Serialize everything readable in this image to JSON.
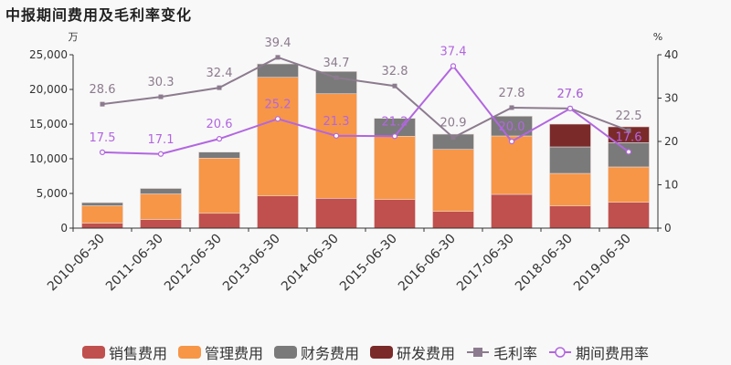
{
  "title": "中报期间费用及毛利率变化",
  "chart_data": {
    "type": "bar",
    "title": "中报期间费用及毛利率变化",
    "categories": [
      "2010-06-30",
      "2011-06-30",
      "2012-06-30",
      "2013-06-30",
      "2014-06-30",
      "2015-06-30",
      "2016-06-30",
      "2017-06-30",
      "2018-06-30",
      "2019-06-30"
    ],
    "left_axis": {
      "unit": "万",
      "ylim": [
        0,
        25000
      ],
      "ticks": [
        "0",
        "5,000",
        "10,000",
        "15,000",
        "20,000",
        "25,000"
      ],
      "tick_values": [
        0,
        5000,
        10000,
        15000,
        20000,
        25000
      ]
    },
    "right_axis": {
      "unit": "%",
      "ylim": [
        0,
        40
      ],
      "ticks": [
        "0",
        "10",
        "20",
        "30",
        "40"
      ],
      "tick_values": [
        0,
        10,
        20,
        30,
        40
      ]
    },
    "stacked_series": [
      {
        "name": "销售费用",
        "color": "#c0504d",
        "values": [
          720,
          1250,
          2140,
          4650,
          4300,
          4120,
          2410,
          4870,
          3200,
          3730
        ]
      },
      {
        "name": "管理费用",
        "color": "#f79646",
        "values": [
          2500,
          3680,
          7950,
          17100,
          15080,
          9130,
          8950,
          8420,
          4690,
          5090
        ]
      },
      {
        "name": "财务费用",
        "color": "#7a7a7a",
        "values": [
          460,
          790,
          870,
          1930,
          3210,
          2580,
          2190,
          2850,
          3820,
          3500
        ]
      },
      {
        "name": "研发费用",
        "color": "#7b2a2a",
        "values": [
          0,
          0,
          0,
          0,
          0,
          0,
          0,
          0,
          3290,
          2290
        ]
      }
    ],
    "line_series": [
      {
        "name": "毛利率",
        "color": "#8c7b8e",
        "marker": "square",
        "values": [
          28.6,
          30.3,
          32.4,
          39.4,
          34.7,
          32.8,
          20.9,
          27.8,
          27.6,
          22.5
        ]
      },
      {
        "name": "期间费用率",
        "color": "#b266e0",
        "marker": "circle",
        "values": [
          17.5,
          17.1,
          20.6,
          25.2,
          21.3,
          21.2,
          37.4,
          20.0,
          27.6,
          17.6
        ]
      }
    ],
    "legend_position": "bottom",
    "grid": false
  }
}
